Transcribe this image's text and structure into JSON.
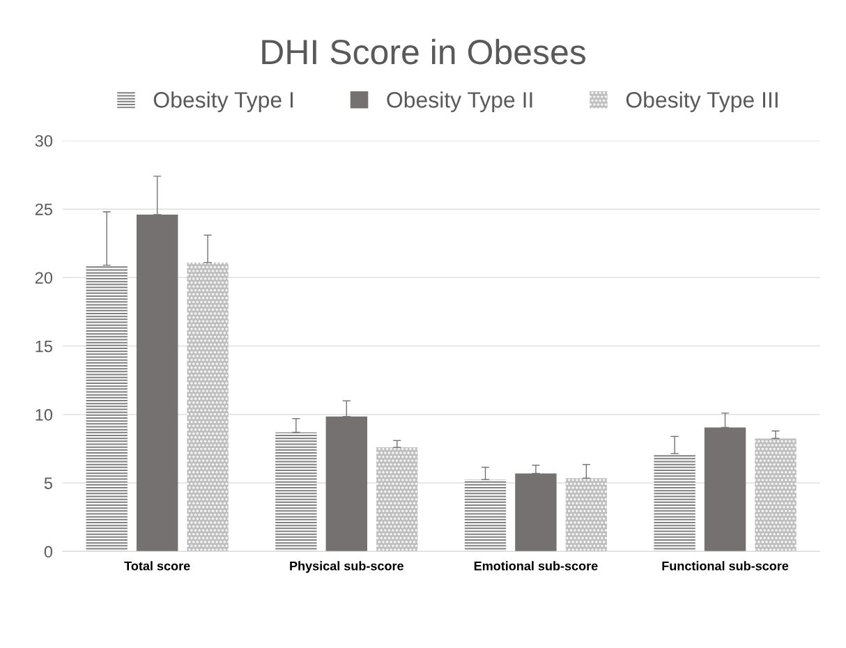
{
  "chart_data": {
    "type": "bar",
    "title": "DHI Score in Obeses",
    "categories": [
      "Total score",
      "Physical sub-score",
      "Emotional sub-score",
      "Functional sub-score"
    ],
    "series": [
      {
        "name": "Obesity Type I",
        "color": "#7f7f7f",
        "values": [
          20.9,
          8.7,
          5.25,
          7.15
        ],
        "errors": [
          [
            20.9,
            24.8
          ],
          [
            8.7,
            9.7
          ],
          [
            5.25,
            6.15
          ],
          [
            7.15,
            8.4
          ]
        ]
      },
      {
        "name": "Obesity Type II",
        "color": "#767171",
        "values": [
          24.6,
          9.85,
          5.7,
          9.05
        ],
        "errors": [
          [
            24.6,
            27.4
          ],
          [
            9.85,
            11.0
          ],
          [
            5.7,
            6.3
          ],
          [
            9.05,
            10.1
          ]
        ]
      },
      {
        "name": "Obesity Type III",
        "color": "#bfbfbf",
        "values": [
          21.1,
          7.6,
          5.35,
          8.25
        ],
        "errors": [
          [
            21.1,
            23.1
          ],
          [
            7.6,
            8.1
          ],
          [
            5.35,
            6.35
          ],
          [
            8.25,
            8.8
          ]
        ]
      }
    ],
    "ylim": [
      0,
      30
    ],
    "yticks": [
      0,
      5,
      10,
      15,
      20,
      25,
      30
    ],
    "grid": "y",
    "legend": "top"
  }
}
